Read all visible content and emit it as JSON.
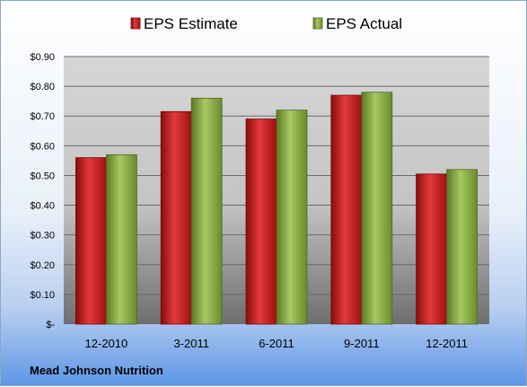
{
  "chart_data": {
    "type": "bar",
    "categories": [
      "12-2010",
      "3-2011",
      "6-2011",
      "9-2011",
      "12-2011"
    ],
    "series": [
      {
        "name": "EPS Estimate",
        "values": [
          0.56,
          0.715,
          0.69,
          0.77,
          0.505
        ],
        "color": "#d01f1f"
      },
      {
        "name": "EPS Actual",
        "values": [
          0.57,
          0.76,
          0.72,
          0.78,
          0.52
        ],
        "color": "#8fb04a"
      }
    ],
    "yticks": [
      {
        "value": 0,
        "label": "$-"
      },
      {
        "value": 0.1,
        "label": "$0.10"
      },
      {
        "value": 0.2,
        "label": "$0.20"
      },
      {
        "value": 0.3,
        "label": "$0.30"
      },
      {
        "value": 0.4,
        "label": "$0.40"
      },
      {
        "value": 0.5,
        "label": "$0.50"
      },
      {
        "value": 0.6,
        "label": "$0.60"
      },
      {
        "value": 0.7,
        "label": "$0.70"
      },
      {
        "value": 0.8,
        "label": "$0.80"
      },
      {
        "value": 0.9,
        "label": "$0.90"
      }
    ],
    "ylim": [
      0,
      0.9
    ],
    "grid": true,
    "legend_position": "top"
  },
  "footer": {
    "company": "Mead Johnson Nutrition"
  }
}
